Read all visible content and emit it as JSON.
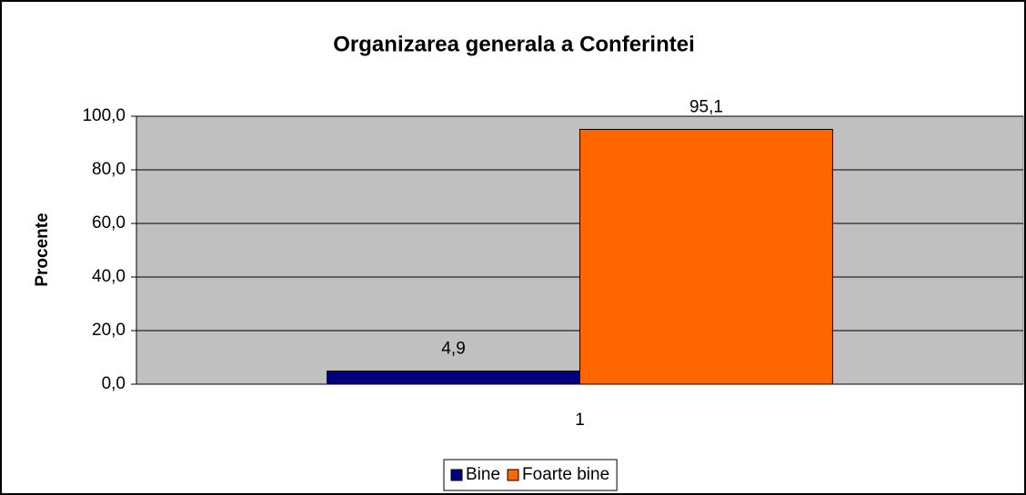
{
  "chart_data": {
    "type": "bar",
    "title": "Organizarea generala a Conferintei",
    "y_label": "Procente",
    "categories": [
      "1"
    ],
    "series": [
      {
        "name": "Bine",
        "color": "#000080",
        "values": [
          4.9
        ],
        "value_labels": [
          "4,9"
        ]
      },
      {
        "name": "Foarte bine",
        "color": "#ff6600",
        "values": [
          95.1
        ],
        "value_labels": [
          "95,1"
        ]
      }
    ],
    "ylim": [
      0,
      100
    ],
    "yticks": [
      {
        "value": 0,
        "label": "0,0"
      },
      {
        "value": 20,
        "label": "20,0"
      },
      {
        "value": 40,
        "label": "40,0"
      },
      {
        "value": 60,
        "label": "60,0"
      },
      {
        "value": 80,
        "label": "80,0"
      },
      {
        "value": 100,
        "label": "100,0"
      }
    ],
    "grid": true,
    "plot_background": "#c0c0c0",
    "legend": "bottom"
  }
}
